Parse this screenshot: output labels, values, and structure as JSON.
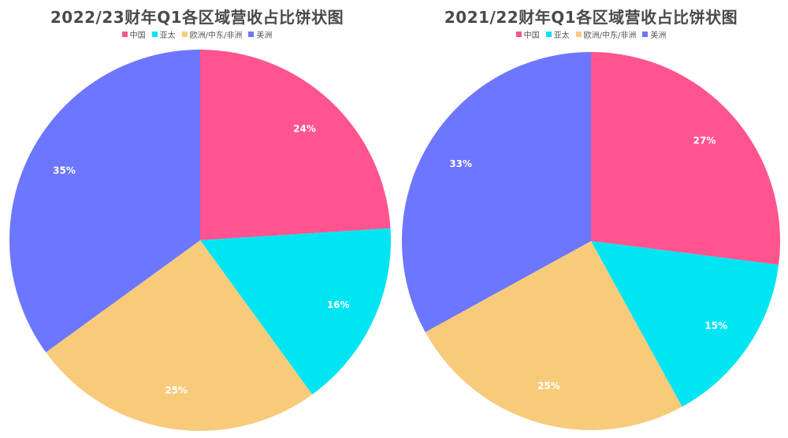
{
  "chart_data": [
    {
      "type": "pie",
      "title": "2022/23财年Q1各区域营收占比饼状图",
      "legend_position": "top-center",
      "slices": [
        {
          "label": "中国",
          "value": 24,
          "display": "24%",
          "color": "#ff5490"
        },
        {
          "label": "亚太",
          "value": 16,
          "display": "16%",
          "color": "#00e5f4"
        },
        {
          "label": "欧洲/中东/非洲",
          "value": 25,
          "display": "25%",
          "color": "#f8cb7a"
        },
        {
          "label": "美洲",
          "value": 35,
          "display": "35%",
          "color": "#6c76ff"
        }
      ]
    },
    {
      "type": "pie",
      "title": "2021/22财年Q1各区域营收占比饼状图",
      "legend_position": "top-center",
      "slices": [
        {
          "label": "中国",
          "value": 27,
          "display": "27%",
          "color": "#ff5490"
        },
        {
          "label": "亚太",
          "value": 15,
          "display": "15%",
          "color": "#00e5f4"
        },
        {
          "label": "欧洲/中东/非洲",
          "value": 25,
          "display": "25%",
          "color": "#f8cb7a"
        },
        {
          "label": "美洲",
          "value": 33,
          "display": "33%",
          "color": "#6c76ff"
        }
      ]
    }
  ]
}
